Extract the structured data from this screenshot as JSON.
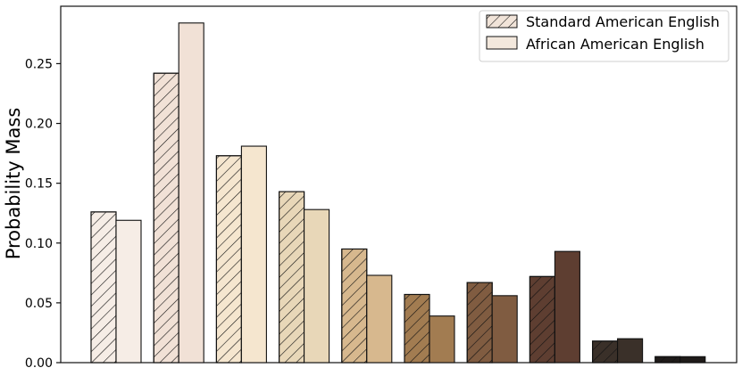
{
  "chart_data": {
    "type": "bar",
    "title": "",
    "xlabel": "",
    "ylabel": "Probability Mass",
    "ylim": [
      0,
      0.298
    ],
    "grid": false,
    "legend_position": "top-right",
    "y_ticks": [
      {
        "value": 0.0,
        "label": "0.00"
      },
      {
        "value": 0.05,
        "label": "0.05"
      },
      {
        "value": 0.1,
        "label": "0.10"
      },
      {
        "value": 0.15,
        "label": "0.15"
      },
      {
        "value": 0.2,
        "label": "0.20"
      },
      {
        "value": 0.25,
        "label": "0.25"
      }
    ],
    "group_count": 10,
    "group_colors": [
      "#f6ede6",
      "#f1e1d6",
      "#f5e6cf",
      "#e8d7b8",
      "#d7b88e",
      "#a27c51",
      "#805c41",
      "#5e3e31",
      "#3a3029",
      "#1f1b19"
    ],
    "series": [
      {
        "name": "Standard American English",
        "pattern": "hatched",
        "values": [
          0.126,
          0.242,
          0.173,
          0.143,
          0.095,
          0.057,
          0.067,
          0.072,
          0.018,
          0.005
        ]
      },
      {
        "name": "African American English",
        "pattern": "solid",
        "values": [
          0.119,
          0.284,
          0.181,
          0.128,
          0.073,
          0.039,
          0.056,
          0.093,
          0.02,
          0.005
        ]
      }
    ]
  }
}
